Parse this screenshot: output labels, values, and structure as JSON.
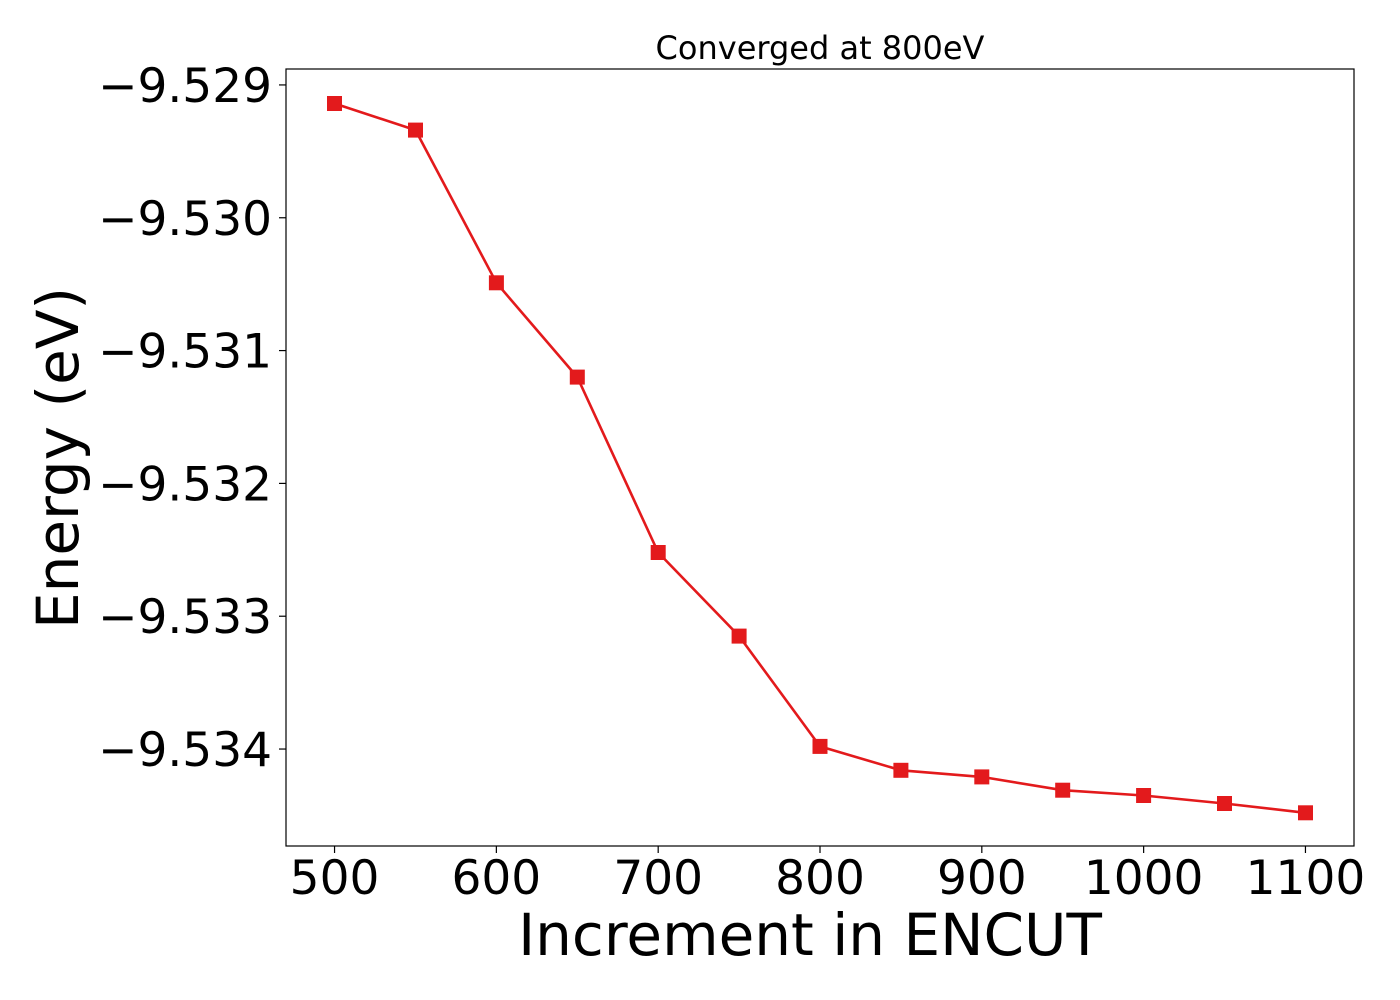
{
  "chart_data": {
    "type": "line",
    "title": "Converged at 800eV",
    "xlabel": "Increment in ENCUT",
    "ylabel": "Energy (eV)",
    "x": [
      500,
      550,
      600,
      650,
      700,
      750,
      800,
      850,
      900,
      950,
      1000,
      1050,
      1100
    ],
    "series": [
      {
        "values": [
          -9.52914,
          -9.52934,
          -9.53049,
          -9.5312,
          -9.53252,
          -9.53315,
          -9.53398,
          -9.53416,
          -9.53421,
          -9.53431,
          -9.53435,
          -9.53441,
          -9.53448
        ],
        "color": "#e31a1c",
        "marker": "square"
      }
    ],
    "xlim": [
      470,
      1130
    ],
    "ylim": [
      -9.53473,
      -9.52888
    ],
    "xticks": [
      500,
      600,
      700,
      800,
      900,
      1000,
      1100
    ],
    "xtick_labels": [
      "500",
      "600",
      "700",
      "800",
      "900",
      "1000",
      "1100"
    ],
    "yticks": [
      -9.529,
      -9.53,
      -9.531,
      -9.532,
      -9.533,
      -9.534
    ],
    "ytick_labels": [
      "−9.529",
      "−9.530",
      "−9.531",
      "−9.532",
      "−9.533",
      "−9.534"
    ],
    "grid": false,
    "legend": false
  }
}
